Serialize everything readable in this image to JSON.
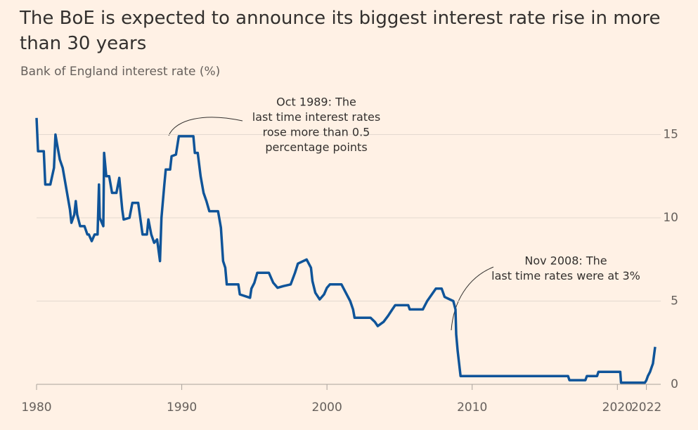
{
  "chart_data": {
    "type": "line",
    "title": "The BoE is expected to announce its biggest interest rate rise in more than 30 years",
    "subtitle": "Bank of England interest rate (%)",
    "color": "#0f5499",
    "x": [
      1980.0,
      1980.1,
      1980.5,
      1980.6,
      1980.95,
      1981.2,
      1981.3,
      1981.4,
      1981.6,
      1981.8,
      1982.0,
      1982.3,
      1982.4,
      1982.6,
      1982.7,
      1982.8,
      1983.0,
      1983.3,
      1983.5,
      1983.6,
      1983.8,
      1984.0,
      1984.2,
      1984.3,
      1984.35,
      1984.6,
      1984.65,
      1984.8,
      1985.0,
      1985.2,
      1985.5,
      1985.7,
      1985.9,
      1986.0,
      1986.4,
      1986.6,
      1987.0,
      1987.3,
      1987.6,
      1987.7,
      1987.9,
      1988.1,
      1988.3,
      1988.5,
      1988.6,
      1988.8,
      1988.9,
      1989.2,
      1989.3,
      1989.6,
      1989.8,
      1990.8,
      1990.9,
      1991.1,
      1991.3,
      1991.5,
      1991.7,
      1991.9,
      1992.5,
      1992.7,
      1992.85,
      1993.0,
      1993.1,
      1993.9,
      1994.0,
      1994.7,
      1994.8,
      1995.0,
      1995.2,
      1996.0,
      1996.3,
      1996.6,
      1997.0,
      1997.5,
      1997.8,
      1998.0,
      1998.6,
      1998.9,
      1999.0,
      1999.2,
      1999.5,
      1999.8,
      2000.0,
      2000.2,
      2001.0,
      2001.3,
      2001.6,
      2001.8,
      2001.9,
      2003.0,
      2003.3,
      2003.5,
      2003.9,
      2004.2,
      2004.5,
      2004.7,
      2005.6,
      2005.7,
      2006.6,
      2006.9,
      2007.1,
      2007.5,
      2007.9,
      2008.1,
      2008.7,
      2008.85,
      2008.9,
      2009.0,
      2009.2,
      2016.6,
      2016.7,
      2017.8,
      2017.9,
      2018.6,
      2018.7,
      2020.2,
      2020.25,
      2021.9,
      2022.0,
      2022.1,
      2022.25,
      2022.35,
      2022.45,
      2022.6
    ],
    "values": [
      16,
      14,
      14,
      12,
      12,
      13,
      15,
      14.5,
      13.5,
      13,
      12,
      10.5,
      9.7,
      10.2,
      11,
      10.2,
      9.5,
      9.5,
      9,
      9,
      8.6,
      9,
      9,
      12,
      10,
      9.5,
      13.9,
      12.5,
      12.5,
      11.5,
      11.5,
      12.4,
      10.5,
      9.9,
      10,
      10.9,
      10.9,
      9,
      9,
      9.9,
      9,
      8.5,
      8.7,
      7.4,
      10,
      12,
      12.9,
      12.9,
      13.7,
      13.8,
      14.9,
      14.9,
      13.9,
      13.9,
      12.5,
      11.5,
      11,
      10.4,
      10.4,
      9.4,
      7.4,
      7,
      6,
      6,
      5.4,
      5.2,
      5.75,
      6.1,
      6.7,
      6.7,
      6.1,
      5.8,
      5.9,
      6,
      6.7,
      7.25,
      7.5,
      7,
      6.2,
      5.5,
      5.1,
      5.4,
      5.8,
      6,
      6,
      5.5,
      5,
      4.5,
      4,
      4,
      3.75,
      3.5,
      3.75,
      4.1,
      4.5,
      4.75,
      4.75,
      4.5,
      4.5,
      5,
      5.25,
      5.75,
      5.75,
      5.25,
      5,
      4.5,
      3,
      2,
      0.5,
      0.5,
      0.25,
      0.25,
      0.5,
      0.5,
      0.75,
      0.75,
      0.1,
      0.1,
      0.25,
      0.5,
      0.75,
      1,
      1.25,
      2.25
    ],
    "xlim": [
      1980,
      2022.6
    ],
    "xticks": [
      1980,
      1990,
      2000,
      2010,
      2020,
      2022
    ],
    "ylim": [
      0,
      16.5
    ],
    "yticks": [
      0,
      5,
      10,
      15
    ],
    "grid": true,
    "annotations": [
      {
        "lines": [
          "Oct 1989: The",
          "last time interest rates",
          "rose more than 0.5",
          "percentage points"
        ]
      },
      {
        "lines": [
          "Nov 2008: The",
          "last time rates were at 3%"
        ]
      }
    ]
  }
}
